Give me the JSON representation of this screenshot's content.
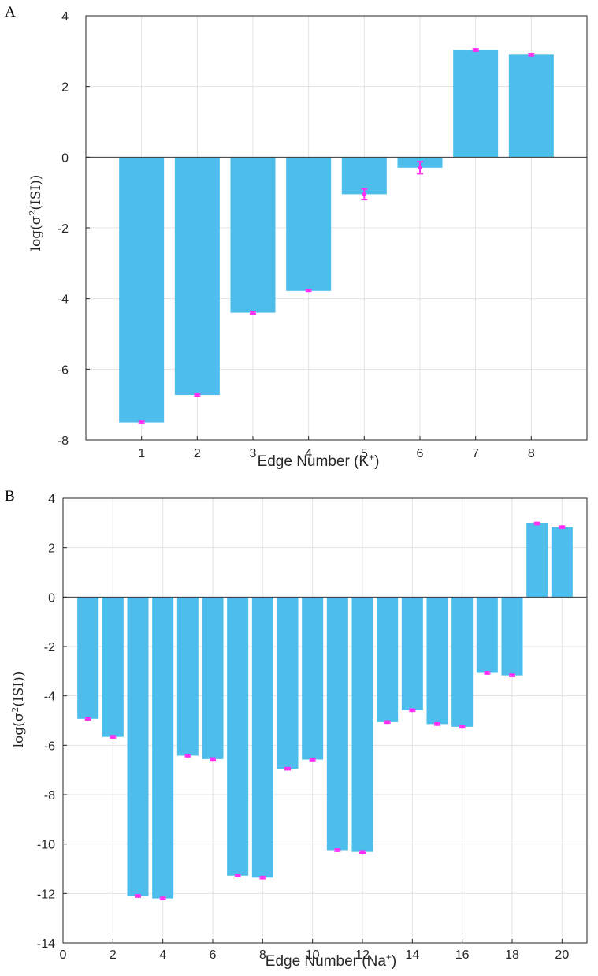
{
  "colors": {
    "bar": "#4dbeeb",
    "error": "#ff2ef2",
    "grid": "#e3e3e3",
    "axis": "#262626"
  },
  "chart_data": [
    {
      "panel": "A",
      "type": "bar",
      "grid": true,
      "xlabel": "Edge Number (K",
      "xlabel_sup": "+",
      "xlabel_end": ")",
      "ylabel": "log(σ",
      "ylabel_sup": "2",
      "ylabel_end": "(ISI))",
      "xlim": [
        0,
        9
      ],
      "ylim": [
        -8,
        4
      ],
      "xticks": [
        1,
        2,
        3,
        4,
        5,
        6,
        7,
        8
      ],
      "yticks": [
        -8,
        -6,
        -4,
        -2,
        0,
        2,
        4
      ],
      "x": [
        1,
        2,
        3,
        4,
        5,
        6,
        7,
        8
      ],
      "values": [
        -7.5,
        -6.73,
        -4.4,
        -3.78,
        -1.05,
        -0.3,
        3.03,
        2.9
      ],
      "error": [
        0.03,
        0.03,
        0.03,
        0.03,
        0.15,
        0.17,
        0.03,
        0.03
      ]
    },
    {
      "panel": "B",
      "type": "bar",
      "grid": true,
      "xlabel": "Edge Number (Na",
      "xlabel_sup": "+",
      "xlabel_end": ")",
      "ylabel": "log(σ",
      "ylabel_sup": "2",
      "ylabel_end": "(ISI))",
      "xlim": [
        0,
        21
      ],
      "ylim": [
        -14,
        4
      ],
      "xticks": [
        0,
        2,
        4,
        6,
        8,
        10,
        12,
        14,
        16,
        18,
        20
      ],
      "yticks": [
        -14,
        -12,
        -10,
        -8,
        -6,
        -4,
        -2,
        0,
        2,
        4
      ],
      "x": [
        1,
        2,
        3,
        4,
        5,
        6,
        7,
        8,
        9,
        10,
        11,
        12,
        13,
        14,
        15,
        16,
        17,
        18,
        19,
        20
      ],
      "values": [
        -4.93,
        -5.66,
        -12.1,
        -12.2,
        -6.42,
        -6.56,
        -11.28,
        -11.36,
        -6.95,
        -6.58,
        -10.25,
        -10.32,
        -5.06,
        -4.58,
        -5.14,
        -5.25,
        -3.07,
        -3.17,
        2.98,
        2.83
      ],
      "error": [
        0.04,
        0.04,
        0.04,
        0.04,
        0.04,
        0.04,
        0.04,
        0.04,
        0.04,
        0.04,
        0.04,
        0.04,
        0.04,
        0.04,
        0.04,
        0.04,
        0.04,
        0.04,
        0.04,
        0.04
      ]
    }
  ]
}
